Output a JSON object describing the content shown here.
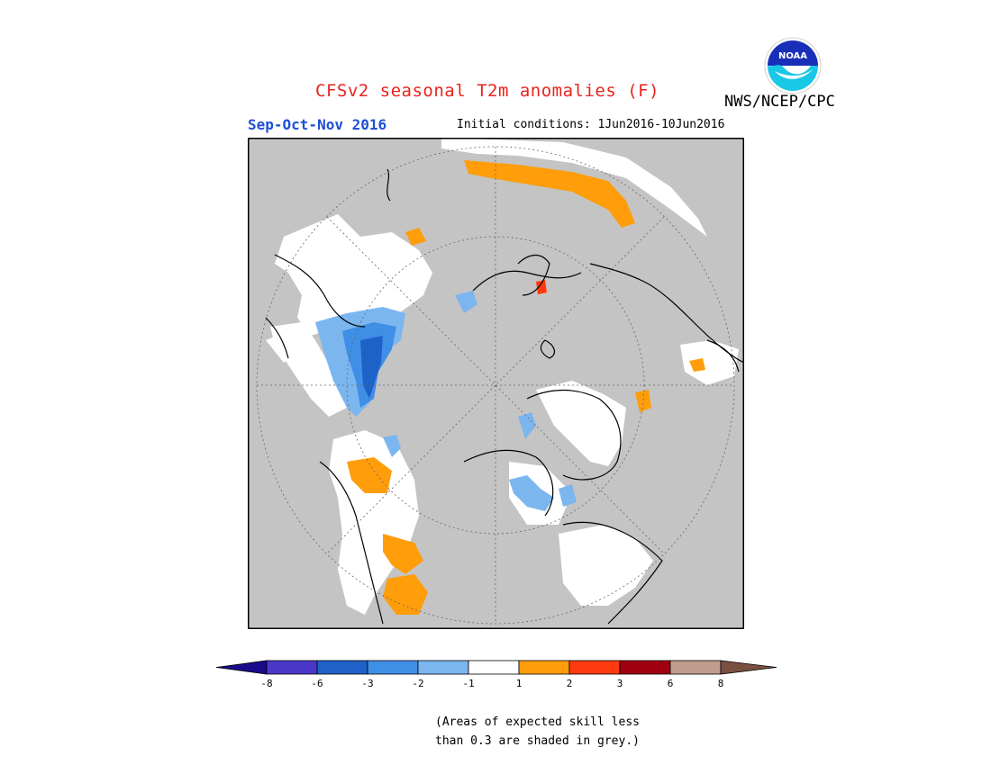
{
  "title": "CFSv2 seasonal T2m anomalies (F)",
  "org": "NWS/NCEP/CPC",
  "logo_text": "NOAA",
  "season": "Sep-Oct-Nov 2016",
  "initial_conditions": "Initial conditions: 1Jun2016-10Jun2016",
  "colorbar": {
    "colors": [
      "#1a0a8c",
      "#4b38c9",
      "#1e62c8",
      "#3f8fe6",
      "#7bb6ef",
      "#ffffff",
      "#ff9d0a",
      "#ff3a0f",
      "#a0000f",
      "#c09c8c",
      "#7a5040"
    ],
    "ticks": [
      "-8",
      "-6",
      "-3",
      "-2",
      "-1",
      "1",
      "2",
      "3",
      "6",
      "8"
    ]
  },
  "note_line1": "(Areas of expected skill less",
  "note_line2": "than 0.3 are shaded in grey.)"
}
